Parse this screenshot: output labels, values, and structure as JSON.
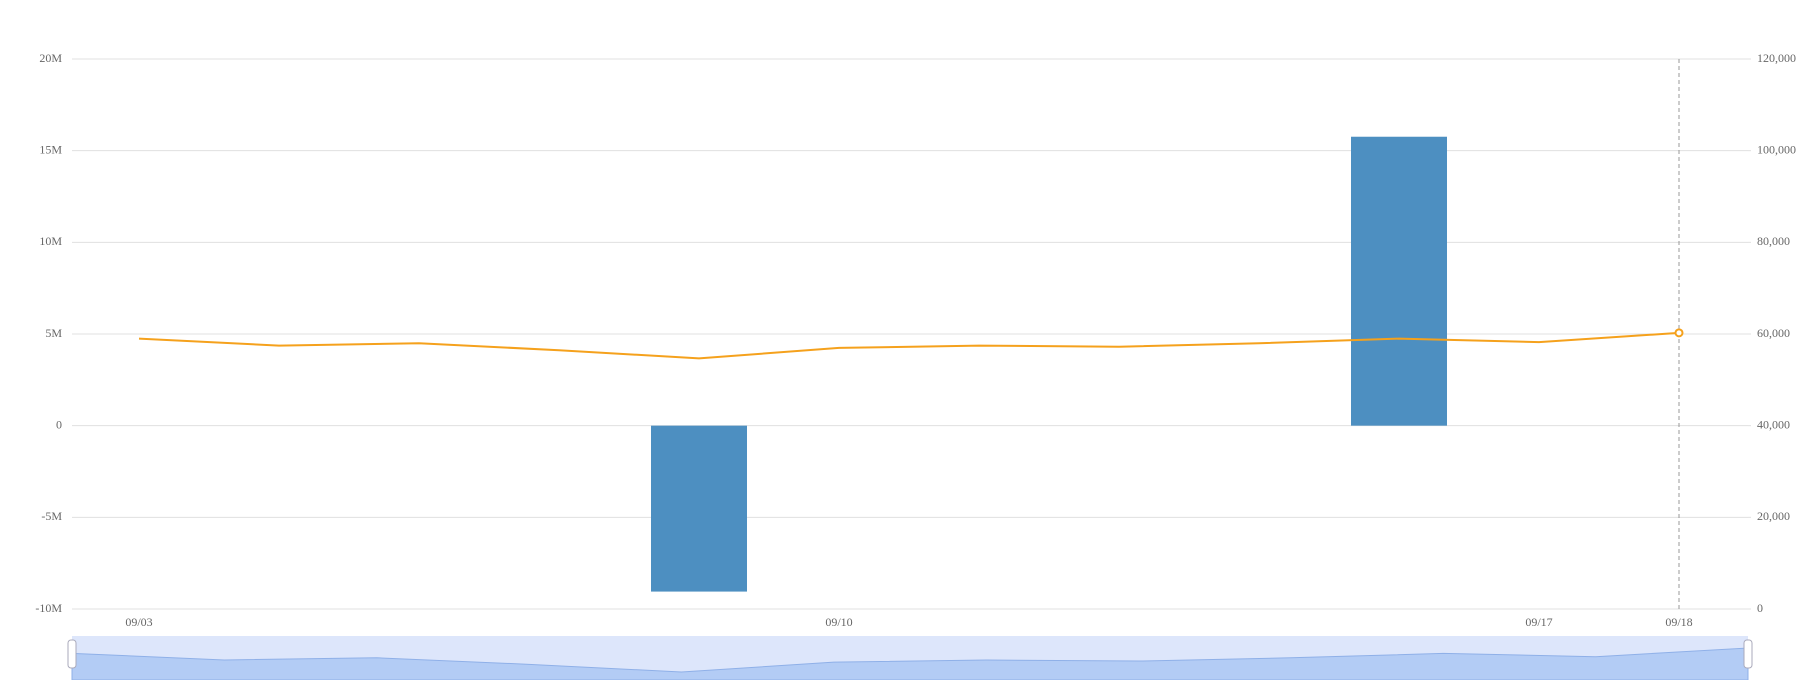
{
  "chart_data": {
    "type": "bar",
    "categories": [
      "09/03",
      null,
      null,
      null,
      null,
      "09/10",
      null,
      null,
      null,
      null,
      "09/17",
      "09/18"
    ],
    "series": [
      {
        "type": "bar",
        "color": "#4d8fc1",
        "values": [
          null,
          null,
          null,
          null,
          -9050000,
          null,
          null,
          null,
          null,
          15760000,
          null,
          null
        ]
      },
      {
        "type": "line",
        "axis": "y2",
        "color": "#f5a11c",
        "values": [
          59000,
          57470,
          57980,
          56460,
          54680,
          56960,
          57470,
          57220,
          57980,
          58990,
          58230,
          60250
        ]
      }
    ],
    "ylim": [
      -10000000,
      20000000
    ],
    "yticks": [
      {
        "value": -10000000,
        "label": "-10M"
      },
      {
        "value": -5000000,
        "label": "-5M"
      },
      0,
      {
        "value": 5000000,
        "label": "5M"
      },
      {
        "value": 10000000,
        "label": "10M"
      },
      {
        "value": 15000000,
        "label": "15M"
      },
      {
        "value": 20000000,
        "label": "20M"
      }
    ],
    "y2lim": [
      0,
      120000
    ],
    "y2ticks": [
      0,
      {
        "value": 20000,
        "label": "20,000"
      },
      {
        "value": 40000,
        "label": "40,000"
      },
      {
        "value": 60000,
        "label": "60,000"
      },
      {
        "value": 80000,
        "label": "80,000"
      },
      {
        "value": 100000,
        "label": "100,000"
      },
      {
        "value": 120000,
        "label": "120,000"
      }
    ],
    "grid": true
  }
}
